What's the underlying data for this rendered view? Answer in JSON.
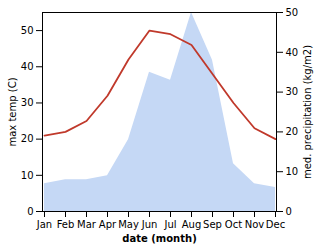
{
  "chart_data": {
    "type": "line",
    "xlabel": "date (month)",
    "ylabel": "max temp (C)",
    "y2label": "med. precipitation (kg/m2)",
    "categories": [
      "Jan",
      "Feb",
      "Mar",
      "Apr",
      "May",
      "Jun",
      "Jul",
      "Aug",
      "Sep",
      "Oct",
      "Nov",
      "Dec"
    ],
    "series": [
      {
        "type": "area",
        "axis": "y2",
        "color": "#c5d8f5",
        "values": [
          7,
          8,
          8,
          9,
          18,
          35,
          33,
          50,
          38,
          12,
          7,
          6
        ]
      },
      {
        "type": "line",
        "color": "#c0392b",
        "values": [
          21,
          22,
          25,
          32,
          42,
          50,
          49,
          46,
          38,
          30,
          23,
          20
        ]
      }
    ],
    "ylim": [
      0,
      55
    ],
    "yticks": [
      0,
      10,
      20,
      30,
      40,
      50
    ],
    "y2lim": [
      0,
      50
    ],
    "y2ticks": [
      0,
      10,
      20,
      30,
      40,
      50
    ]
  }
}
